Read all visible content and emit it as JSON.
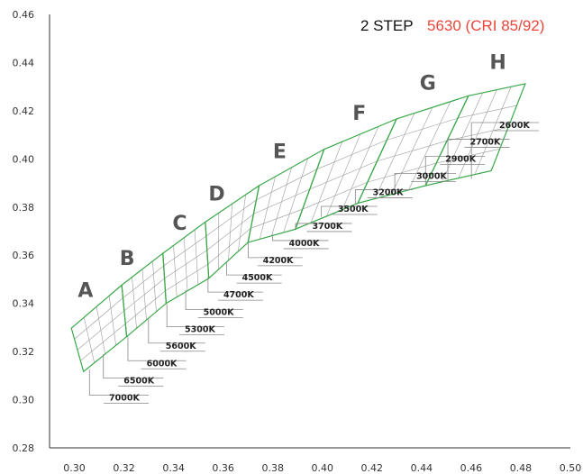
{
  "chart_data": {
    "type": "scatter",
    "title": "2 STEP",
    "subtitle": "5630 (CRI 85/92)",
    "xlabel": "",
    "ylabel": "",
    "xlim": [
      0.29,
      0.5
    ],
    "ylim": [
      0.28,
      0.46
    ],
    "x_ticks": [
      "0.30",
      "0.32",
      "0.34",
      "0.36",
      "0.38",
      "0.40",
      "0.42",
      "0.44",
      "0.46",
      "0.48",
      "0.50"
    ],
    "y_ticks": [
      "0.28",
      "0.30",
      "0.32",
      "0.34",
      "0.36",
      "0.38",
      "0.40",
      "0.42",
      "0.44",
      "0.46"
    ],
    "grid": false,
    "colors": {
      "bin_outline": "#3aa84a",
      "subgrid": "#9a9a9a",
      "leader": "#888888",
      "accent": "#e8463a",
      "bin_label": "#555555"
    },
    "bins": [
      {
        "label": "A",
        "label_at": [
          0.3045,
          0.3426
        ],
        "upper": [
          [
            0.2988,
            0.3297
          ],
          [
            0.3191,
            0.3476
          ]
        ],
        "lower": [
          [
            0.3037,
            0.3117
          ],
          [
            0.3211,
            0.3262
          ]
        ]
      },
      {
        "label": "B",
        "label_at": [
          0.3213,
          0.356
        ],
        "upper": [
          [
            0.3191,
            0.3476
          ],
          [
            0.3357,
            0.3608
          ]
        ],
        "lower": [
          [
            0.3211,
            0.3262
          ],
          [
            0.337,
            0.34
          ]
        ]
      },
      {
        "label": "C",
        "label_at": [
          0.3425,
          0.3705
        ],
        "upper": [
          [
            0.3357,
            0.3608
          ],
          [
            0.3528,
            0.3738
          ]
        ],
        "lower": [
          [
            0.337,
            0.34
          ],
          [
            0.3542,
            0.3504
          ]
        ]
      },
      {
        "label": "D",
        "label_at": [
          0.3574,
          0.3828
        ],
        "upper": [
          [
            0.3528,
            0.3738
          ],
          [
            0.3745,
            0.3889
          ]
        ],
        "lower": [
          [
            0.3542,
            0.3504
          ],
          [
            0.37,
            0.3653
          ]
        ]
      },
      {
        "label": "E",
        "label_at": [
          0.3828,
          0.4003
        ],
        "upper": [
          [
            0.3745,
            0.3889
          ],
          [
            0.4007,
            0.404
          ]
        ],
        "lower": [
          [
            0.37,
            0.3653
          ],
          [
            0.3891,
            0.3708
          ]
        ]
      },
      {
        "label": "F",
        "label_at": [
          0.4149,
          0.4162
        ],
        "upper": [
          [
            0.4007,
            0.404
          ],
          [
            0.4299,
            0.4166
          ]
        ],
        "lower": [
          [
            0.3891,
            0.3708
          ],
          [
            0.4143,
            0.3816
          ]
        ]
      },
      {
        "label": "G",
        "label_at": [
          0.4425,
          0.4287
        ],
        "upper": [
          [
            0.4299,
            0.4166
          ],
          [
            0.4589,
            0.4262
          ]
        ],
        "lower": [
          [
            0.4143,
            0.3816
          ],
          [
            0.4416,
            0.3889
          ]
        ]
      },
      {
        "label": "H",
        "label_at": [
          0.4708,
          0.4373
        ],
        "upper": [
          [
            0.4589,
            0.4262
          ],
          [
            0.4818,
            0.4312
          ]
        ],
        "lower": [
          [
            0.4416,
            0.3889
          ],
          [
            0.4681,
            0.3951
          ]
        ]
      }
    ],
    "cct_labels": [
      {
        "text": "7000K",
        "anchor": [
          0.3061,
          0.3124
        ],
        "label_at": [
          0.314,
          0.3004
        ]
      },
      {
        "text": "6500K",
        "anchor": [
          0.3117,
          0.3189
        ],
        "label_at": [
          0.3199,
          0.3075
        ]
      },
      {
        "text": "6000K",
        "anchor": [
          0.3216,
          0.3262
        ],
        "label_at": [
          0.3291,
          0.3147
        ]
      },
      {
        "text": "5600K",
        "anchor": [
          0.3299,
          0.3334
        ],
        "label_at": [
          0.3368,
          0.322
        ]
      },
      {
        "text": "5300K",
        "anchor": [
          0.3373,
          0.3398
        ],
        "label_at": [
          0.3445,
          0.3288
        ]
      },
      {
        "text": "5000K",
        "anchor": [
          0.3449,
          0.3456
        ],
        "label_at": [
          0.352,
          0.3359
        ]
      },
      {
        "text": "4700K",
        "anchor": [
          0.3539,
          0.3509
        ],
        "label_at": [
          0.3601,
          0.3432
        ]
      },
      {
        "text": "4500K",
        "anchor": [
          0.3614,
          0.3573
        ],
        "label_at": [
          0.3676,
          0.3503
        ]
      },
      {
        "text": "4200K",
        "anchor": [
          0.3701,
          0.3651
        ],
        "label_at": [
          0.376,
          0.3575
        ]
      },
      {
        "text": "4000K",
        "anchor": [
          0.3799,
          0.3687
        ],
        "label_at": [
          0.3865,
          0.3646
        ]
      },
      {
        "text": "3700K",
        "anchor": [
          0.3892,
          0.3709
        ],
        "label_at": [
          0.3959,
          0.3717
        ]
      },
      {
        "text": "3500K",
        "anchor": [
          0.3996,
          0.3759
        ],
        "label_at": [
          0.4062,
          0.3788
        ]
      },
      {
        "text": "3200K",
        "anchor": [
          0.4133,
          0.3814
        ],
        "label_at": [
          0.4203,
          0.3857
        ]
      },
      {
        "text": "3000K",
        "anchor": [
          0.4292,
          0.3855
        ],
        "label_at": [
          0.4379,
          0.3925
        ]
      },
      {
        "text": "2900K",
        "anchor": [
          0.4416,
          0.389
        ],
        "label_at": [
          0.4496,
          0.3996
        ]
      },
      {
        "text": "2700K",
        "anchor": [
          0.4506,
          0.3907
        ],
        "label_at": [
          0.4595,
          0.4067
        ]
      },
      {
        "text": "2600K",
        "anchor": [
          0.4601,
          0.3917
        ],
        "label_at": [
          0.4713,
          0.4136
        ]
      }
    ]
  }
}
